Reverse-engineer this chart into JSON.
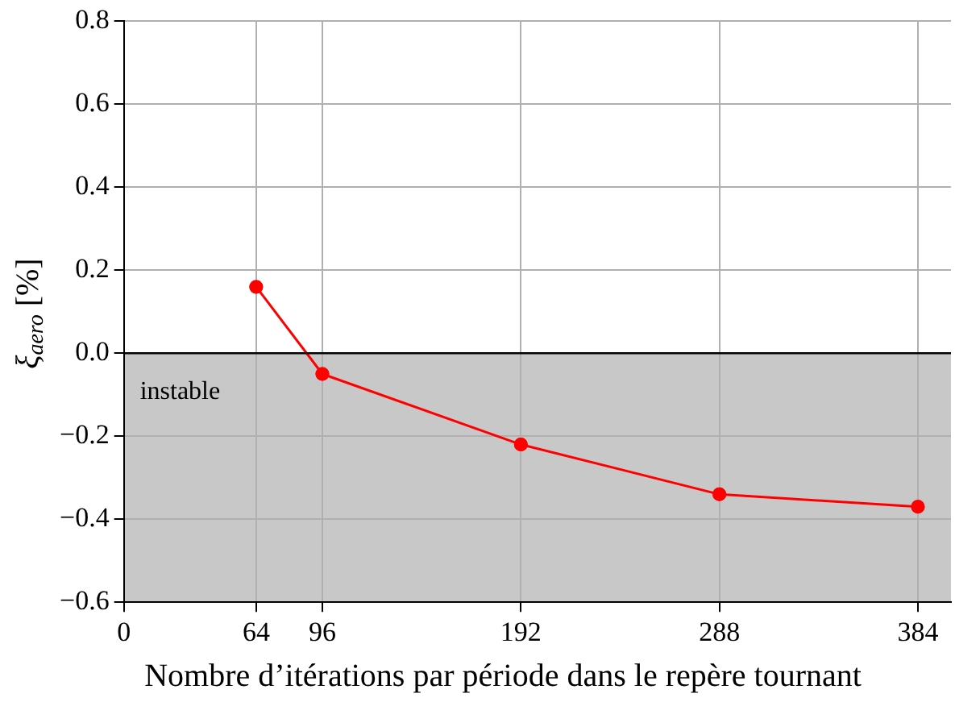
{
  "chart_data": {
    "type": "line",
    "xlabel": "Nombre d’itérations par période dans le repère tournant",
    "ylabel": "ξ$_{aero}$ [%]",
    "x": [
      64,
      96,
      192,
      288,
      384
    ],
    "series": [
      {
        "color": "#ff0000",
        "values": [
          0.16,
          -0.05,
          -0.22,
          -0.34,
          -0.37
        ]
      }
    ],
    "xlim": [
      0,
      400
    ],
    "xticks": [
      0,
      64,
      96,
      192,
      288,
      384
    ],
    "ylim": [
      -0.6,
      0.8
    ],
    "yticks": [
      {
        "value": -0.6,
        "label": "−0.6"
      },
      {
        "value": -0.4,
        "label": "−0.4"
      },
      {
        "value": -0.2,
        "label": "−0.2"
      },
      {
        "value": 0,
        "label": "0.0"
      },
      {
        "value": 0.2,
        "label": "0.2"
      },
      {
        "value": 0.4,
        "label": "0.4"
      },
      {
        "value": 0.6,
        "label": "0.6"
      },
      {
        "value": 0.8,
        "label": "0.8"
      }
    ],
    "bands": [
      {
        "axis": "y",
        "from": -0.6,
        "to": 0,
        "label": "instable",
        "color": "#c8c8c8"
      }
    ],
    "ref_lines": [
      {
        "axis": "y",
        "value": 0,
        "color": "#000000"
      }
    ],
    "grid": true,
    "marker": "circle",
    "line_style": "solid",
    "legend": false
  }
}
